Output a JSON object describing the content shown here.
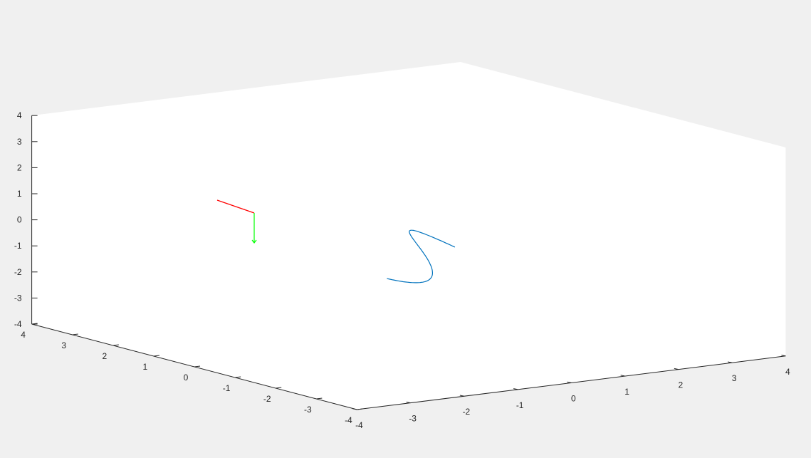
{
  "chart_data": {
    "type": "line",
    "dimensions": 3,
    "title": "",
    "xlabel": "",
    "ylabel": "",
    "zlabel": "",
    "xlim": [
      -4,
      4
    ],
    "ylim": [
      -4,
      4
    ],
    "zlim": [
      -4,
      4
    ],
    "grid": false,
    "box": false,
    "x_ticks": [
      "-4",
      "-3",
      "-2",
      "-1",
      "0",
      "1",
      "2",
      "3",
      "4"
    ],
    "y_ticks": [
      "-4",
      "-3",
      "-2",
      "-1",
      "0",
      "1",
      "2",
      "3",
      "4"
    ],
    "z_ticks": [
      "-4",
      "-3",
      "-2",
      "-1",
      "0",
      "1",
      "2",
      "3",
      "4"
    ],
    "colors": {
      "figure_background": "#f0f0f0",
      "axes_background": "#ffffff",
      "axis_line": "#262626",
      "curve": "#0072bd",
      "tangent_vector": "#ff0000",
      "normal_vector": "#00ff00"
    },
    "series": [
      {
        "kind": "curve",
        "description_t_range": [
          -2,
          2
        ],
        "samples": 121
      },
      {
        "kind": "vector",
        "color_key": "tangent_vector",
        "origin": [
          -2,
          -0.7,
          0.6
        ],
        "direction": [
          1,
          0,
          0
        ],
        "arrow": false
      },
      {
        "kind": "vector",
        "color_key": "normal_vector",
        "origin": [
          -2,
          -0.7,
          0.6
        ],
        "direction": [
          0,
          0,
          -1
        ],
        "arrow": true
      }
    ]
  }
}
